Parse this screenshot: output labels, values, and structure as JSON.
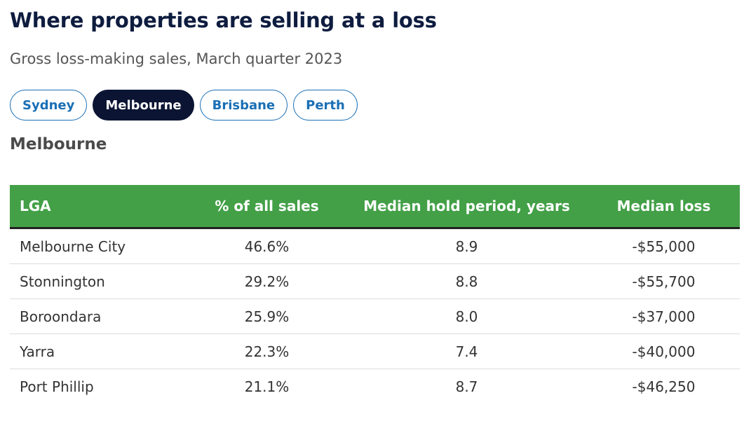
{
  "title": "Where properties are selling at a loss",
  "subtitle": "Gross loss-making sales, March quarter 2023",
  "tabs": [
    {
      "label": "Sydney",
      "active": false
    },
    {
      "label": "Melbourne",
      "active": true
    },
    {
      "label": "Brisbane",
      "active": false
    },
    {
      "label": "Perth",
      "active": false
    }
  ],
  "section_heading": "Melbourne",
  "table": {
    "header_color": "#43a047",
    "columns": [
      "LGA",
      "% of all sales",
      "Median hold period, years",
      "Median loss"
    ],
    "rows": [
      [
        "Melbourne City",
        "46.6%",
        "8.9",
        "-$55,000"
      ],
      [
        "Stonnington",
        "29.2%",
        "8.8",
        "-$55,700"
      ],
      [
        "Boroondara",
        "25.9%",
        "8.0",
        "-$37,000"
      ],
      [
        "Yarra",
        "22.3%",
        "7.4",
        "-$40,000"
      ],
      [
        "Port Phillip",
        "21.1%",
        "8.7",
        "-$46,250"
      ]
    ]
  }
}
